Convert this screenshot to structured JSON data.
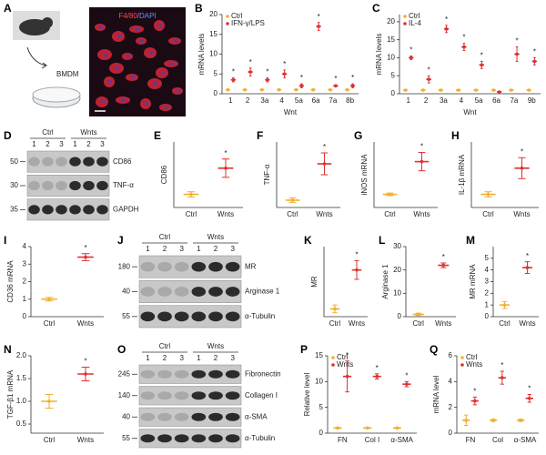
{
  "panel_a": {
    "label": "A",
    "item": "BMDM",
    "stain": [
      "F4/80",
      "/DAPI"
    ]
  },
  "chart_data": [
    {
      "type": "dotplot",
      "label": "B",
      "ylabel": "mRNA levels",
      "xlabel": "Wnt",
      "categories": [
        "1",
        "2",
        "3a",
        "4",
        "5a",
        "6a",
        "7a",
        "8b"
      ],
      "ylim": [
        0,
        20
      ],
      "yticks": [
        0,
        5,
        10,
        15,
        20
      ],
      "series": [
        {
          "name": "Ctrl",
          "color": "#f0b030",
          "values": [
            1,
            1,
            1,
            1,
            1,
            1,
            1,
            1
          ],
          "errors": [
            0.1,
            0.1,
            0.1,
            0.1,
            0.1,
            0.1,
            0.1,
            0.1
          ]
        },
        {
          "name": "IFN-γ/LPS",
          "color": "#e03030",
          "values": [
            3.5,
            5.5,
            3.5,
            5,
            2,
            17,
            2,
            2
          ],
          "errors": [
            0.5,
            1,
            0.5,
            1,
            0.5,
            1,
            0.3,
            0.5
          ],
          "stars": [
            "*",
            "*",
            "*",
            "*",
            "*",
            "*",
            "*",
            "*"
          ]
        }
      ]
    },
    {
      "type": "dotplot",
      "label": "C",
      "ylabel": "mRNA levels",
      "xlabel": "Wnt",
      "categories": [
        "1",
        "2",
        "3a",
        "4",
        "5a",
        "6a",
        "7a",
        "9b"
      ],
      "ylim": [
        0,
        22
      ],
      "yticks": [
        0,
        5,
        10,
        15,
        20
      ],
      "series": [
        {
          "name": "Ctrl",
          "color": "#f0b030",
          "values": [
            1,
            1,
            1,
            1,
            1,
            1,
            1,
            1
          ],
          "errors": [
            0.1,
            0.1,
            0.1,
            0.1,
            0.1,
            0.1,
            0.1,
            0.1
          ]
        },
        {
          "name": "IL-4",
          "color": "#e03030",
          "values": [
            10,
            4,
            18,
            13,
            8,
            0.5,
            11,
            9
          ],
          "errors": [
            0.5,
            1,
            1,
            1,
            1,
            0.2,
            2,
            1
          ],
          "stars": [
            "*",
            "*",
            "*",
            "*",
            "*",
            null,
            "*",
            "*"
          ]
        }
      ]
    },
    {
      "type": "dotplot",
      "label": "E",
      "ylabel": "CD86",
      "categories": [
        "Ctrl",
        "Wnts"
      ],
      "ylim": [
        0,
        5
      ],
      "series": [
        {
          "colors": [
            "#f0b030",
            "#e03030"
          ],
          "values": [
            1,
            3
          ],
          "errors": [
            0.2,
            0.7
          ],
          "stars": [
            null,
            "*"
          ]
        }
      ]
    },
    {
      "type": "dotplot",
      "label": "F",
      "ylabel": "TNF-α",
      "categories": [
        "Ctrl",
        "Wnts"
      ],
      "ylim": [
        0,
        9
      ],
      "series": [
        {
          "colors": [
            "#f0b030",
            "#e03030"
          ],
          "values": [
            1,
            6
          ],
          "errors": [
            0.3,
            1.5
          ],
          "stars": [
            null,
            "*"
          ]
        }
      ]
    },
    {
      "type": "dotplot",
      "label": "G",
      "ylabel": "iNOS mRNA",
      "categories": [
        "Ctrl",
        "Wnts"
      ],
      "ylim": [
        0,
        5
      ],
      "series": [
        {
          "colors": [
            "#f0b030",
            "#e03030"
          ],
          "values": [
            1,
            3.5
          ],
          "errors": [
            0.1,
            0.7
          ],
          "stars": [
            null,
            "*"
          ]
        }
      ]
    },
    {
      "type": "dotplot",
      "label": "H",
      "ylabel": "IL-1β mRNA",
      "categories": [
        "Ctrl",
        "Wnts"
      ],
      "ylim": [
        0,
        5
      ],
      "series": [
        {
          "colors": [
            "#f0b030",
            "#e03030"
          ],
          "values": [
            1,
            3
          ],
          "errors": [
            0.2,
            0.8
          ],
          "stars": [
            null,
            "*"
          ]
        }
      ]
    },
    {
      "type": "dotplot",
      "label": "I",
      "ylabel": "CD36 mRNA",
      "categories": [
        "Ctrl",
        "Wnts"
      ],
      "ylim": [
        0,
        4
      ],
      "yticks": [
        0,
        1,
        2,
        3,
        4
      ],
      "series": [
        {
          "colors": [
            "#f0b030",
            "#e03030"
          ],
          "values": [
            1,
            3.4
          ],
          "errors": [
            0.1,
            0.2
          ],
          "stars": [
            null,
            "*"
          ]
        }
      ]
    },
    {
      "type": "dotplot",
      "label": "K",
      "ylabel": "MR",
      "categories": [
        "Ctrl",
        "Wnts"
      ],
      "ylim": [
        0,
        9
      ],
      "series": [
        {
          "colors": [
            "#f0b030",
            "#e03030"
          ],
          "values": [
            1,
            6
          ],
          "errors": [
            0.5,
            1.2
          ],
          "stars": [
            null,
            "*"
          ]
        }
      ]
    },
    {
      "type": "dotplot",
      "label": "L",
      "ylabel": "Arginase 1",
      "categories": [
        "Ctrl",
        "Wnts"
      ],
      "ylim": [
        0,
        30
      ],
      "yticks": [
        0,
        10,
        20,
        30
      ],
      "series": [
        {
          "colors": [
            "#f0b030",
            "#e03030"
          ],
          "values": [
            1,
            22
          ],
          "errors": [
            0.5,
            1
          ],
          "stars": [
            null,
            "*"
          ]
        }
      ]
    },
    {
      "type": "dotplot",
      "label": "M",
      "ylabel": "MR mRNA",
      "categories": [
        "Ctrl",
        "Wnts"
      ],
      "ylim": [
        0,
        6
      ],
      "yticks": [
        0,
        1,
        2,
        3,
        4,
        5
      ],
      "series": [
        {
          "colors": [
            "#f0b030",
            "#e03030"
          ],
          "values": [
            1,
            4.2
          ],
          "errors": [
            0.3,
            0.5
          ],
          "stars": [
            null,
            "*"
          ]
        }
      ]
    },
    {
      "type": "dotplot",
      "label": "N",
      "ylabel": "TGF-β1 mRNA",
      "categories": [
        "Ctrl",
        "Wnts"
      ],
      "ylim": [
        0.3,
        2
      ],
      "yticks": [
        0.5,
        {
          "value": 1,
          "label": "1.0"
        },
        1.5,
        {
          "value": 2,
          "label": "2.0"
        }
      ],
      "series": [
        {
          "colors": [
            "#f0b030",
            "#e03030"
          ],
          "values": [
            1,
            1.6
          ],
          "errors": [
            0.15,
            0.15
          ],
          "stars": [
            null,
            "*"
          ]
        }
      ]
    },
    {
      "type": "dotplot",
      "label": "P",
      "ylabel": "Relative level",
      "categories": [
        "FN",
        "Col I",
        "α-SMA"
      ],
      "ylim": [
        0,
        15
      ],
      "yticks": [
        0,
        5,
        10,
        15
      ],
      "series": [
        {
          "name": "Ctrl",
          "color": "#f0b030",
          "values": [
            1,
            1,
            1
          ],
          "errors": [
            0.1,
            0.1,
            0.1
          ]
        },
        {
          "name": "Wnts",
          "color": "#e03030",
          "values": [
            11,
            11,
            9.5
          ],
          "errors": [
            3,
            0.5,
            0.5
          ],
          "stars": [
            "*",
            "*",
            "*"
          ]
        }
      ]
    },
    {
      "type": "dotplot",
      "label": "Q",
      "ylabel": "mRNA level",
      "categories": [
        "FN",
        "Col",
        "α-SMA"
      ],
      "ylim": [
        0,
        6
      ],
      "yticks": [
        0,
        2,
        4,
        6
      ],
      "series": [
        {
          "name": "Ctrl",
          "color": "#f0b030",
          "values": [
            1,
            1,
            1
          ],
          "errors": [
            0.4,
            0.1,
            0.1
          ]
        },
        {
          "name": "Wnts",
          "color": "#e03030",
          "values": [
            2.5,
            4.3,
            2.7
          ],
          "errors": [
            0.3,
            0.5,
            0.3
          ],
          "stars": [
            "*",
            "*",
            "*"
          ]
        }
      ]
    }
  ],
  "blots": [
    {
      "label": "D",
      "groups": [
        "Ctrl",
        "Wnts"
      ],
      "lanes": [
        "1",
        "2",
        "3",
        "1",
        "2",
        "3"
      ],
      "rows": [
        {
          "name": "CD86",
          "marker": "50"
        },
        {
          "name": "TNF-α",
          "marker": "30"
        },
        {
          "name": "GAPDH",
          "marker": "35"
        }
      ]
    },
    {
      "label": "J",
      "groups": [
        "Ctrl",
        "Wnts"
      ],
      "lanes": [
        "1",
        "2",
        "3",
        "1",
        "2",
        "3"
      ],
      "rows": [
        {
          "name": "MR",
          "marker": "180"
        },
        {
          "name": "Arginase 1",
          "marker": "40"
        },
        {
          "name": "α-Tubulin",
          "marker": "55"
        }
      ]
    },
    {
      "label": "O",
      "groups": [
        "Ctrl",
        "Wnts"
      ],
      "lanes": [
        "1",
        "2",
        "3",
        "1",
        "2",
        "3"
      ],
      "rows": [
        {
          "name": "Fibronectin",
          "marker": "245"
        },
        {
          "name": "Collagen I",
          "marker": "140"
        },
        {
          "name": "α-SMA",
          "marker": "40"
        },
        {
          "name": "α-Tubulin",
          "marker": "55"
        }
      ]
    }
  ]
}
